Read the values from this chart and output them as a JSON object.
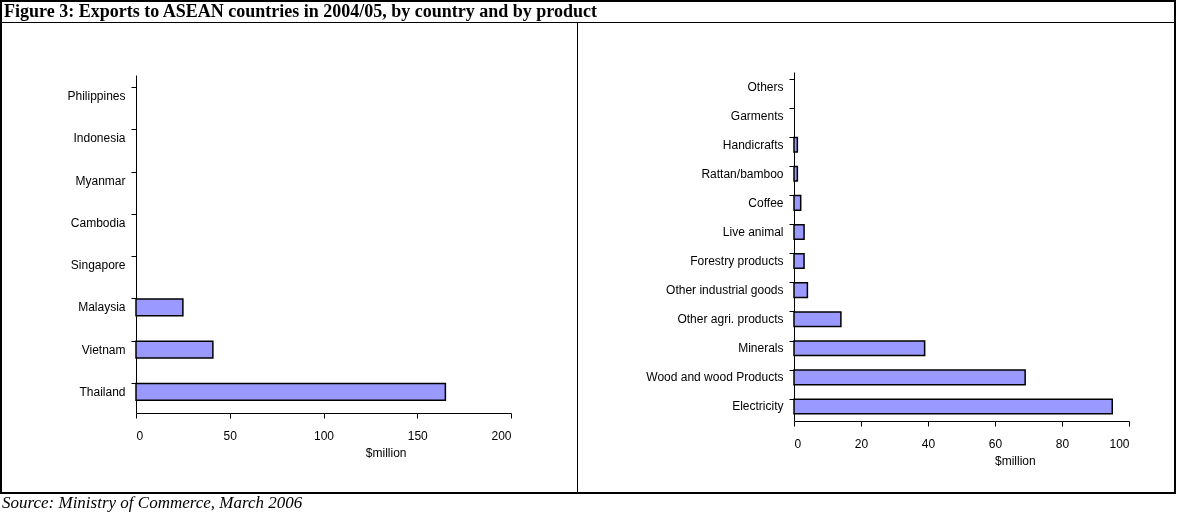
{
  "chart_data": [
    {
      "type": "bar",
      "title": "Figure 3: Exports to ASEAN countries in 2004/05, by country and by product",
      "orientation": "horizontal",
      "categories": [
        "Philippines",
        "Indonesia",
        "Myanmar",
        "Cambodia",
        "Singapore",
        "Malaysia",
        "Vietnam",
        "Thailand"
      ],
      "values": [
        0,
        0,
        0,
        0,
        0,
        25,
        41,
        165
      ],
      "color": "#9999ff",
      "xlabel": "$million",
      "xlim": [
        0,
        200
      ],
      "xticks": [
        0,
        50,
        100,
        150,
        200
      ],
      "annotations": [
        "Source: Ministry of Commerce, March 2006"
      ]
    },
    {
      "type": "bar",
      "orientation": "horizontal",
      "categories": [
        "Others",
        "Garments",
        "Handicrafts",
        "Rattan/bamboo",
        "Coffee",
        "Live animal",
        "Forestry products",
        "Other industrial goods",
        "Other agri. products",
        "Minerals",
        "Wood and wood Products",
        "Electricity"
      ],
      "values": [
        0,
        0,
        1,
        1,
        2,
        3,
        3,
        4,
        14,
        39,
        69,
        95
      ],
      "color": "#9999ff",
      "xlabel": "$million",
      "xlim": [
        0,
        100
      ],
      "xticks": [
        0,
        20,
        40,
        60,
        80,
        100
      ]
    }
  ]
}
